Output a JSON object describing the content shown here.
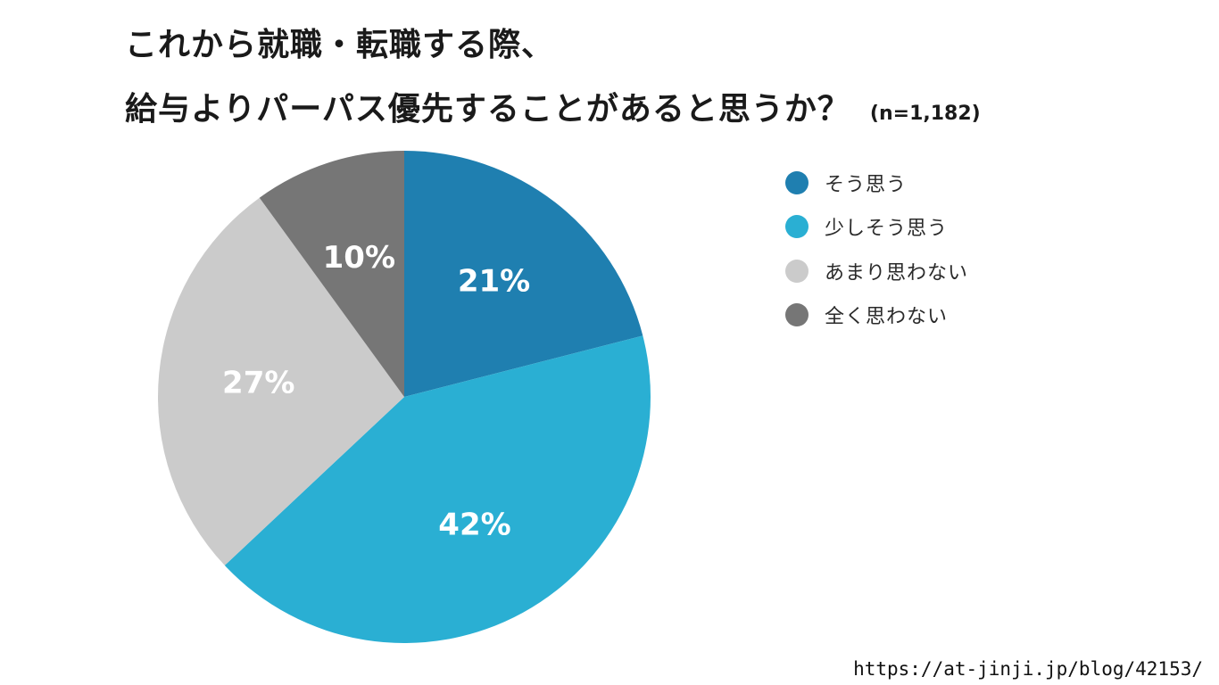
{
  "title": {
    "line1": "これから就職・転職する際、",
    "line2": "給与よりパーパス優先することがあると思うか？",
    "sample_size": "(n=1,182)"
  },
  "chart_data": {
    "type": "pie",
    "start_angle_deg": 0,
    "direction": "clockwise",
    "slices": [
      {
        "label": "そう思う",
        "value": 21,
        "display": "21%",
        "color": "#1f7fb0"
      },
      {
        "label": "少しそう思う",
        "value": 42,
        "display": "42%",
        "color": "#2aafd3"
      },
      {
        "label": "あまり思わない",
        "value": 27,
        "display": "27%",
        "color": "#cbcbcb"
      },
      {
        "label": "全く思わない",
        "value": 10,
        "display": "10%",
        "color": "#767676"
      }
    ],
    "legend_position": "right",
    "label_color": "#ffffff"
  },
  "source": {
    "url": "https://at-jinji.jp/blog/42153/"
  }
}
